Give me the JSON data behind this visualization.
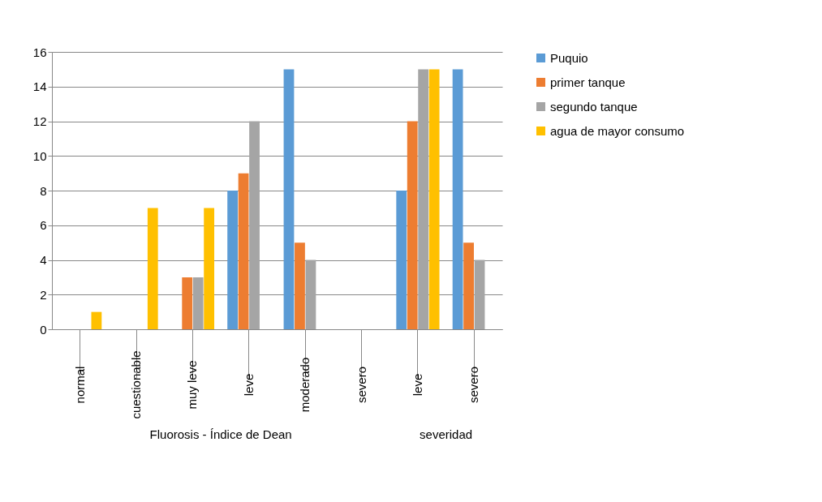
{
  "chart_data": {
    "type": "bar",
    "categories": [
      "normal",
      "cuestionable",
      "muy leve",
      "leve",
      "moderado",
      "severo",
      "leve",
      "severo"
    ],
    "series": [
      {
        "name": "Puquio",
        "color": "#5b9bd5",
        "values": [
          0,
          0,
          0,
          8,
          15,
          0,
          8,
          15
        ]
      },
      {
        "name": "primer tanque",
        "color": "#ed7d31",
        "values": [
          0,
          0,
          3,
          9,
          5,
          0,
          12,
          5
        ]
      },
      {
        "name": "segundo tanque",
        "color": "#a5a5a5",
        "values": [
          0,
          0,
          3,
          12,
          4,
          0,
          15,
          4
        ]
      },
      {
        "name": "agua de mayor consumo",
        "color": "#ffc000",
        "values": [
          1,
          7,
          7,
          0,
          0,
          0,
          15,
          0
        ]
      }
    ],
    "ylim": [
      0,
      16
    ],
    "yticks": [
      0,
      2,
      4,
      6,
      8,
      10,
      12,
      14,
      16
    ],
    "grid": "y",
    "legend": "right",
    "annotations": [
      "Fluorosis - Índice de Dean",
      "severidad"
    ]
  }
}
